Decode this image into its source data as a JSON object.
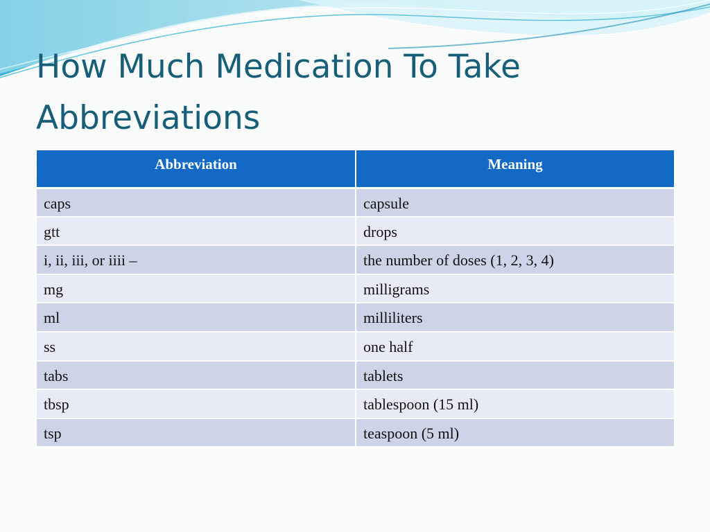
{
  "slide": {
    "title_line1": "How Much Medication To Take",
    "title_line2": "Abbreviations"
  },
  "table": {
    "headers": [
      "Abbreviation",
      "Meaning"
    ],
    "rows": [
      [
        "caps",
        "capsule"
      ],
      [
        "gtt",
        "drops"
      ],
      [
        "i, ii, iii, or iiii –",
        "the number of doses (1, 2, 3, 4)"
      ],
      [
        "mg",
        "milligrams"
      ],
      [
        "ml",
        "milliliters"
      ],
      [
        "ss",
        "one half"
      ],
      [
        "tabs",
        "tablets"
      ],
      [
        "tbsp",
        "tablespoon (15 ml)"
      ],
      [
        "tsp",
        "teaspoon (5 ml)"
      ]
    ]
  },
  "colors": {
    "title": "#175f78",
    "header_bg": "#1269c6",
    "row_dark": "#cdd4e8",
    "row_light": "#e8ebf5",
    "wave_primary": "#2aa7cf",
    "wave_light": "#a9e0ee"
  }
}
